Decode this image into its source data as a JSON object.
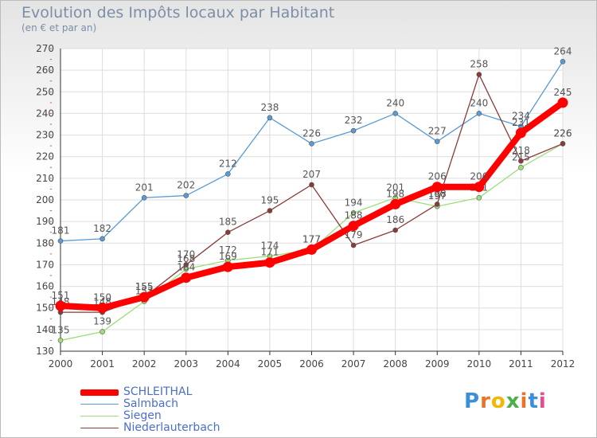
{
  "title": "Evolution des Impôts locaux par Habitant",
  "subtitle": "(en € et par an)",
  "logo": "Proxiti",
  "chart_data": {
    "type": "line",
    "title": "Evolution des Impôts locaux par Habitant",
    "ylabel": "(en € et par an)",
    "xlabel": "",
    "x": [
      2000,
      2001,
      2002,
      2003,
      2004,
      2005,
      2006,
      2007,
      2008,
      2009,
      2010,
      2011,
      2012
    ],
    "ylim": [
      130,
      270
    ],
    "yticks": [
      130,
      140,
      150,
      160,
      170,
      180,
      190,
      200,
      210,
      220,
      230,
      240,
      250,
      260,
      270
    ],
    "grid": true,
    "legend_position": "bottom-left",
    "series": [
      {
        "name": "Salmbach",
        "color": "#5a9bd5",
        "values": [
          181,
          182,
          201,
          202,
          212,
          238,
          226,
          232,
          240,
          227,
          240,
          234,
          264
        ]
      },
      {
        "name": "Siegen",
        "color": "#9fdd7c",
        "values": [
          135,
          139,
          153,
          168,
          172,
          174,
          177,
          194,
          201,
          197,
          201,
          215,
          226
        ]
      },
      {
        "name": "Niederlauterbach",
        "color": "#8b3a3a",
        "values": [
          148,
          148,
          155,
          170,
          185,
          195,
          207,
          179,
          186,
          198,
          258,
          218,
          226
        ]
      },
      {
        "name": "SCHLEITHAL",
        "color": "#ff0000",
        "values": [
          151,
          150,
          155,
          164,
          169,
          171,
          177,
          188,
          198,
          206,
          206,
          231,
          245
        ]
      }
    ]
  },
  "legend": [
    {
      "label": "SCHLEITHAL",
      "color": "#ff0000"
    },
    {
      "label": "Salmbach",
      "color": "#5a9bd5"
    },
    {
      "label": "Siegen",
      "color": "#9fdd7c"
    },
    {
      "label": "Niederlauterbach",
      "color": "#8b3a3a"
    }
  ],
  "legend_swatch_widths": [
    8,
    1,
    1,
    1
  ]
}
